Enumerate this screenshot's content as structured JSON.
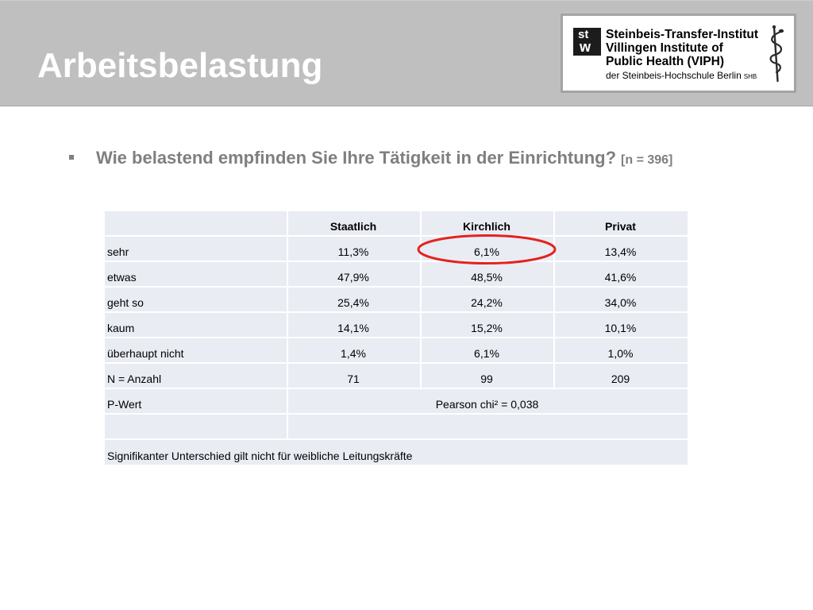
{
  "slide": {
    "title": "Arbeitsbelastung"
  },
  "logo": {
    "mark_top": "st",
    "mark_bottom": "w",
    "line1": "Steinbeis-Transfer-Institut",
    "line2": "Villingen Institute of",
    "line3": "Public Health (VIPH)",
    "line4": "der Steinbeis-Hochschule Berlin",
    "line4_suffix": "SHB",
    "emblem_icon": "aesculapian-staff-icon"
  },
  "question": {
    "bullet_icon": "square-bullet-icon",
    "text": "Wie belastend empfinden Sie Ihre Tätigkeit in der Einrichtung?",
    "sample_size": "[n = 396]"
  },
  "table": {
    "header": [
      "",
      "Staatlich",
      "Kirchlich",
      "Privat"
    ],
    "rows": [
      {
        "label": "sehr",
        "values": [
          "11,3%",
          "6,1%",
          "13,4%"
        ]
      },
      {
        "label": "etwas",
        "values": [
          "47,9%",
          "48,5%",
          "41,6%"
        ]
      },
      {
        "label": "geht so",
        "values": [
          "25,4%",
          "24,2%",
          "34,0%"
        ]
      },
      {
        "label": "kaum",
        "values": [
          "14,1%",
          "15,2%",
          "10,1%"
        ]
      },
      {
        "label": "überhaupt nicht",
        "values": [
          "1,4%",
          "6,1%",
          "1,0%"
        ]
      },
      {
        "label": "N = Anzahl",
        "values": [
          "71",
          "99",
          "209"
        ]
      }
    ],
    "p_value": {
      "label": "P-Wert",
      "value": "Pearson chi² = 0,038"
    },
    "note": "Signifikanter Unterschied gilt nicht für weibliche Leitungskräfte"
  },
  "colors": {
    "header_band": "#bfbfbf",
    "title": "#ffffff",
    "question_text": "#7f7f7f",
    "cell_background": "#e9ecf3",
    "highlight": "#e2241f"
  }
}
